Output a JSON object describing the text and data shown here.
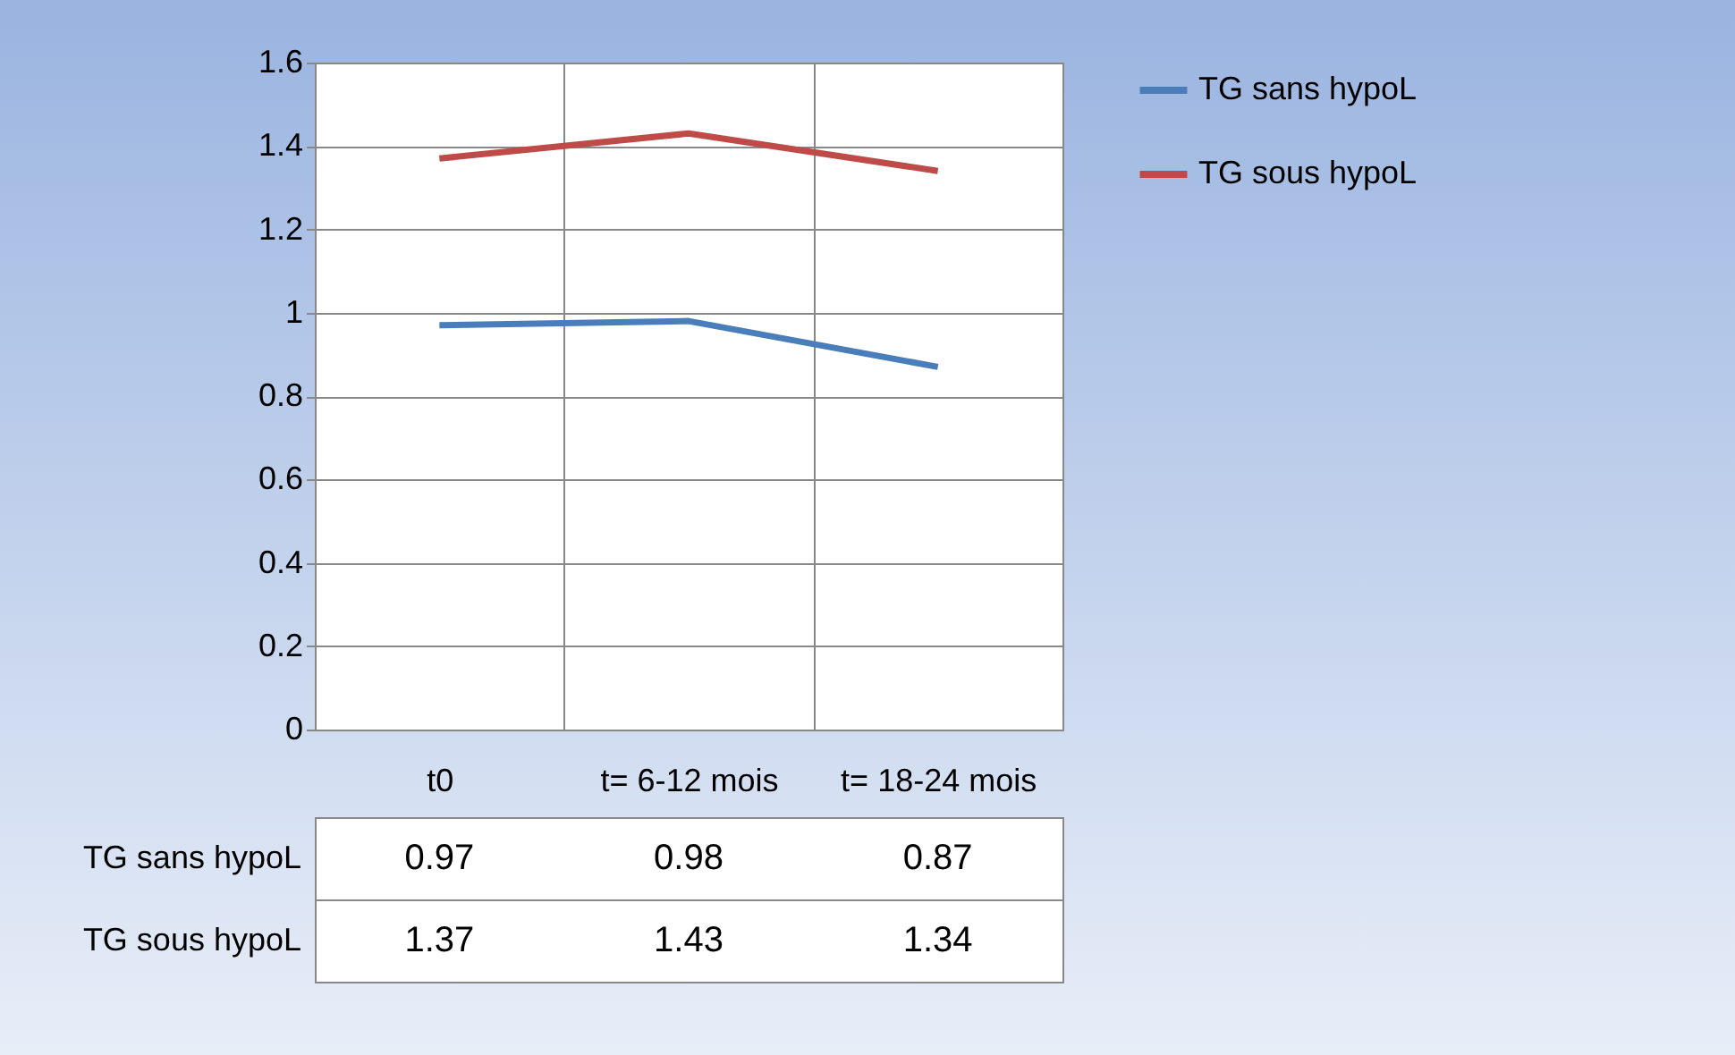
{
  "chart_data": {
    "type": "line",
    "categories": [
      "t0",
      "t= 6-12 mois",
      "t= 18-24 mois"
    ],
    "series": [
      {
        "name": "TG sans hypoL",
        "color": "#4a7ebb",
        "values": [
          0.97,
          0.98,
          0.87
        ]
      },
      {
        "name": "TG sous hypoL",
        "color": "#be4b48",
        "values": [
          1.37,
          1.43,
          1.34
        ]
      }
    ],
    "ylim": [
      0,
      1.6
    ],
    "yticks": [
      0,
      0.2,
      0.4,
      0.6,
      0.8,
      1,
      1.2,
      1.4,
      1.6
    ],
    "grid": true,
    "legend": "right",
    "data_labels": true,
    "marker": "none",
    "line_style": "solid"
  }
}
